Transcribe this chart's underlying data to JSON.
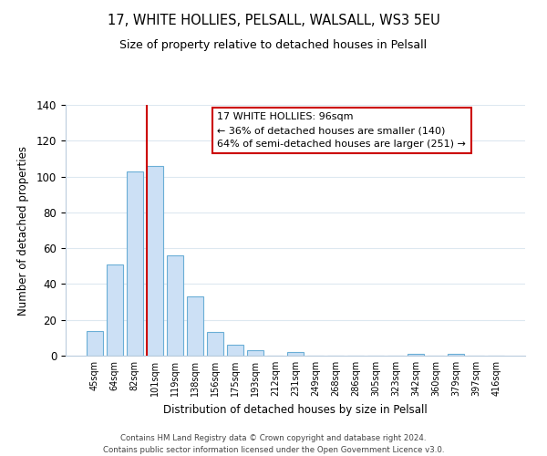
{
  "title": "17, WHITE HOLLIES, PELSALL, WALSALL, WS3 5EU",
  "subtitle": "Size of property relative to detached houses in Pelsall",
  "xlabel": "Distribution of detached houses by size in Pelsall",
  "ylabel": "Number of detached properties",
  "bar_labels": [
    "45sqm",
    "64sqm",
    "82sqm",
    "101sqm",
    "119sqm",
    "138sqm",
    "156sqm",
    "175sqm",
    "193sqm",
    "212sqm",
    "231sqm",
    "249sqm",
    "268sqm",
    "286sqm",
    "305sqm",
    "323sqm",
    "342sqm",
    "360sqm",
    "379sqm",
    "397sqm",
    "416sqm"
  ],
  "bar_values": [
    14,
    51,
    103,
    106,
    56,
    33,
    13,
    6,
    3,
    0,
    2,
    0,
    0,
    0,
    0,
    0,
    1,
    0,
    1,
    0,
    0
  ],
  "bar_color": "#cce0f5",
  "bar_edge_color": "#6aaed6",
  "ylim": [
    0,
    140
  ],
  "yticks": [
    0,
    20,
    40,
    60,
    80,
    100,
    120,
    140
  ],
  "vline_x": 2.6,
  "vline_color": "#cc0000",
  "annotation_title": "17 WHITE HOLLIES: 96sqm",
  "annotation_line1": "← 36% of detached houses are smaller (140)",
  "annotation_line2": "64% of semi-detached houses are larger (251) →",
  "annotation_box_color": "#ffffff",
  "annotation_box_edge": "#cc0000",
  "footer1": "Contains HM Land Registry data © Crown copyright and database right 2024.",
  "footer2": "Contains public sector information licensed under the Open Government Licence v3.0.",
  "background_color": "#ffffff",
  "grid_color": "#dde8f0"
}
